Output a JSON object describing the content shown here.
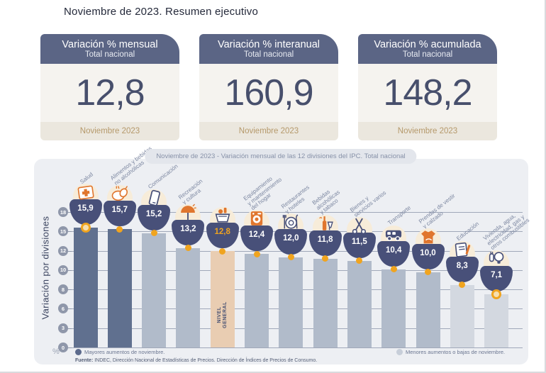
{
  "page": {
    "title": "Noviembre de 2023. Resumen ejecutivo"
  },
  "cards": [
    {
      "title": "Variación % mensual",
      "subtitle": "Total nacional",
      "value": "12,8",
      "period": "Noviembre 2023"
    },
    {
      "title": "Variación % interanual",
      "subtitle": "Total nacional",
      "value": "160,9",
      "period": "Noviembre 2023"
    },
    {
      "title": "Variación % acumulada",
      "subtitle": "Total nacional",
      "value": "148,2",
      "period": "Noviembre 2023"
    }
  ],
  "chart": {
    "subtitle_pill": "Noviembre de 2023 - Variación mensual de las 12 divisiones del IPC. Total nacional",
    "y_axis_label": "Variación por divisiones",
    "unit_label": "%",
    "legend": [
      {
        "label": "Mayores aumentos de noviembre.",
        "color": "#5c6a8c"
      },
      {
        "label": "Menores aumentos o bajas de noviembre.",
        "color": "#c7ced9"
      }
    ],
    "source_label": "Fuente:",
    "source_text": "INDEC, Dirección Nacional de Estadísticas de Precios. Dirección de Índices de Precios de Consumo."
  },
  "chart_data": {
    "type": "bar",
    "title": "Noviembre de 2023 - Variación mensual de las 12 divisiones del IPC. Total nacional",
    "xlabel": "",
    "ylabel": "Variación por divisiones",
    "ylim": [
      0,
      18
    ],
    "yticks": [
      18,
      15,
      12,
      10,
      8,
      6,
      3,
      0
    ],
    "grid": true,
    "legend_position": "bottom",
    "categories": [
      "Salud",
      "Alimentos y bebidas no alcohólicas",
      "Comunicación",
      "Recreación y cultura",
      "Nivel general",
      "Equipamiento y mantenimiento del hogar",
      "Restaurantes y hoteles",
      "Bebidas alcohólicas y tabaco",
      "Bienes y servicios varios",
      "Transporte",
      "Prendas de vestir y calzado",
      "Educación",
      "Vivienda, agua, electricidad, gas y otros combustibles"
    ],
    "values": [
      15.9,
      15.7,
      15.2,
      13.2,
      12.8,
      12.4,
      12.0,
      11.8,
      11.5,
      10.4,
      10.0,
      8.3,
      7.1
    ],
    "value_labels": [
      "15,9",
      "15,7",
      "15,2",
      "13,2",
      "12,8",
      "12,4",
      "12,0",
      "11,8",
      "11,5",
      "10,4",
      "10,0",
      "8,3",
      "7,1"
    ],
    "bar_groups": [
      "dark",
      "dark",
      "medium",
      "medium",
      "general",
      "medium",
      "medium",
      "medium",
      "medium",
      "medium",
      "medium",
      "light",
      "light"
    ],
    "marker_styles": [
      "ring",
      "dot",
      "dot",
      "dot",
      "dot",
      "dot",
      "dot",
      "dot",
      "dot",
      "dot",
      "dot",
      "dot",
      "ring"
    ],
    "icons": [
      "health-cross-icon",
      "food-poultry-icon",
      "communication-phone-icon",
      "recreation-umbrella-icon",
      "shopping-basket-icon",
      "washing-machine-icon",
      "restaurant-plate-icon",
      "alcohol-bottle-icon",
      "scissors-icon",
      "transport-bus-icon",
      "tshirt-icon",
      "education-notebook-icon",
      "lightbulb-icon"
    ],
    "diagonal_labels": [
      "Salud",
      "Alimentos y bebidas\nno alcohólicas",
      "Comunicación",
      "Recreación\ny cultura",
      "",
      "Equipamiento\ny mantenimiento\ndel hogar",
      "Restaurantes\ny hoteles",
      "Bebidas\nalcohólicas\ny tabaco",
      "Bienes y\nservicios varios",
      "Transporte",
      "Prendas de vestir\ny calzado",
      "Educación",
      "Vivienda, agua,\nelectricidad, gas y\notros combustibles"
    ],
    "general_bar_label": "NIVEL\nGENERAL",
    "general_bar_index": 4
  },
  "colors": {
    "accent_orange": "#f0a41f",
    "icon_orange": "#e0762e",
    "navy": "#485079",
    "bar_dark": "#60708f",
    "bar_medium": "#b1bbca",
    "bar_light": "#d3d8e0",
    "bar_general": "#e9cdb2",
    "ring_fill": "#f7dfae"
  }
}
